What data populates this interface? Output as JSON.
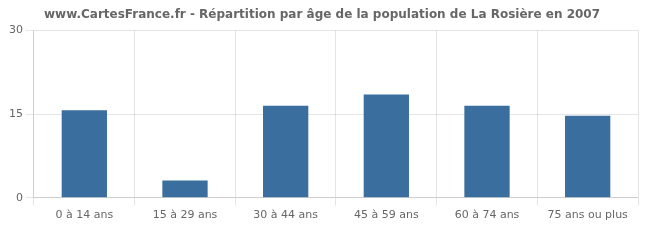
{
  "chart_data": {
    "type": "bar",
    "title": "www.CartesFrance.fr - Répartition par âge de la population de La Rosière en 2007",
    "categories": [
      "0 à 14 ans",
      "15 à 29 ans",
      "30 à 44 ans",
      "45 à 59 ans",
      "60 à 74 ans",
      "75 ans ou plus"
    ],
    "values": [
      15.7,
      3.1,
      16.5,
      18.5,
      16.5,
      14.7
    ],
    "color": "#3A6E9E",
    "ylim": [
      0,
      30
    ],
    "yticks": [
      0,
      15,
      30
    ],
    "grid": true
  }
}
